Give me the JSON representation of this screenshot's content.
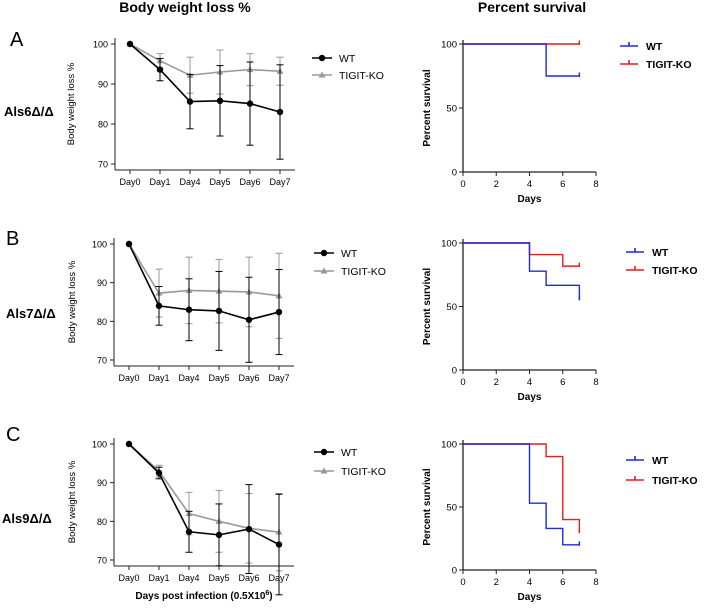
{
  "headers": {
    "left": "Body weight loss %",
    "right": "Percent survival"
  },
  "colors": {
    "wt": "#000000",
    "ko": "#9a9a9a",
    "wt_survival": "#1f2bd6",
    "ko_survival": "#e01f1f",
    "axis": "#222222"
  },
  "chart_data": [
    {
      "type": "line",
      "panel": "A",
      "row_label": "Als6Δ/Δ",
      "title": "",
      "xlabel": "",
      "ylabel": "Body weight loss %",
      "categories": [
        "Day0",
        "Day1",
        "Day4",
        "Day5",
        "Day6",
        "Day7"
      ],
      "ylim": [
        70,
        100
      ],
      "yticks": [
        70,
        80,
        90,
        100
      ],
      "series": [
        {
          "name": "WT",
          "values": [
            100,
            93.6,
            85.6,
            85.8,
            85.1,
            83.0
          ],
          "err": [
            0,
            2.8,
            6.8,
            8.8,
            10.4,
            11.8
          ]
        },
        {
          "name": "TIGIT-KO",
          "values": [
            100,
            95.8,
            92.2,
            93.0,
            93.6,
            93.2
          ],
          "err": [
            0,
            1.8,
            4.5,
            5.5,
            4.0,
            3.5
          ]
        }
      ]
    },
    {
      "type": "line",
      "panel": "B",
      "row_label": "Als7Δ/Δ",
      "title": "",
      "xlabel": "",
      "ylabel": "Body weight loss %",
      "categories": [
        "Day0",
        "Day1",
        "Day4",
        "Day5",
        "Day6",
        "Day7"
      ],
      "ylim": [
        70,
        100
      ],
      "yticks": [
        70,
        80,
        90,
        100
      ],
      "series": [
        {
          "name": "WT",
          "values": [
            100,
            84.0,
            83.0,
            82.7,
            80.4,
            82.4
          ],
          "err": [
            0,
            5.0,
            8.0,
            10.2,
            11.0,
            11.0
          ]
        },
        {
          "name": "TIGIT-KO",
          "values": [
            100,
            87.3,
            88.0,
            87.8,
            87.6,
            86.6
          ],
          "err": [
            0,
            6.2,
            8.6,
            8.2,
            9.0,
            11.0
          ]
        }
      ]
    },
    {
      "type": "line",
      "panel": "C",
      "row_label": "Als9Δ/Δ",
      "title": "",
      "xlabel": "Days post infection (0.5X10",
      "xlabel_sup": "6",
      "xlabel_tail": ")",
      "ylabel": "Body weight loss %",
      "categories": [
        "Day0",
        "Day1",
        "Day4",
        "Day5",
        "Day6",
        "Day7"
      ],
      "ylim": [
        70,
        100
      ],
      "yticks": [
        70,
        80,
        90,
        100
      ],
      "series": [
        {
          "name": "WT",
          "values": [
            100,
            92.5,
            77.3,
            76.5,
            78.0,
            74.0
          ],
          "err": [
            0,
            1.5,
            5.3,
            8.0,
            11.5,
            13.0
          ]
        },
        {
          "name": "TIGIT-KO",
          "values": [
            100,
            93.0,
            82.0,
            80.0,
            78.2,
            77.2
          ],
          "err": [
            0,
            1.5,
            5.5,
            8.0,
            9.0,
            10.0
          ]
        }
      ]
    },
    {
      "type": "step",
      "panel": "A",
      "title": "",
      "xlabel": "Days",
      "ylabel": "Percent survival",
      "xlim": [
        0,
        8
      ],
      "xticks": [
        0,
        2,
        4,
        6,
        8
      ],
      "ylim": [
        0,
        100
      ],
      "yticks": [
        0,
        50,
        100
      ],
      "series": [
        {
          "name": "WT",
          "x": [
            0,
            5,
            7
          ],
          "y": [
            100,
            75,
            75
          ]
        },
        {
          "name": "TIGIT-KO",
          "x": [
            0,
            7
          ],
          "y": [
            100,
            100
          ]
        }
      ]
    },
    {
      "type": "step",
      "panel": "B",
      "title": "",
      "xlabel": "Days",
      "ylabel": "Percent survival",
      "xlim": [
        0,
        8
      ],
      "xticks": [
        0,
        2,
        4,
        6,
        8
      ],
      "ylim": [
        0,
        100
      ],
      "yticks": [
        0,
        50,
        100
      ],
      "series": [
        {
          "name": "WT",
          "x": [
            0,
            4,
            5,
            7
          ],
          "y": [
            100,
            77.8,
            66.7,
            55.6
          ]
        },
        {
          "name": "TIGIT-KO",
          "x": [
            0,
            4,
            6,
            7
          ],
          "y": [
            100,
            90.9,
            81.8,
            81.8
          ]
        }
      ]
    },
    {
      "type": "step",
      "panel": "C",
      "title": "",
      "xlabel": "Days",
      "ylabel": "Percent survival",
      "xlim": [
        0,
        8
      ],
      "xticks": [
        0,
        2,
        4,
        6,
        8
      ],
      "ylim": [
        0,
        100
      ],
      "yticks": [
        0,
        50,
        100
      ],
      "series": [
        {
          "name": "WT",
          "x": [
            0,
            4,
            5,
            6,
            7
          ],
          "y": [
            100,
            53,
            33,
            20,
            20
          ]
        },
        {
          "name": "TIGIT-KO",
          "x": [
            0,
            5,
            6,
            7
          ],
          "y": [
            100,
            90,
            40,
            30
          ]
        }
      ]
    }
  ]
}
